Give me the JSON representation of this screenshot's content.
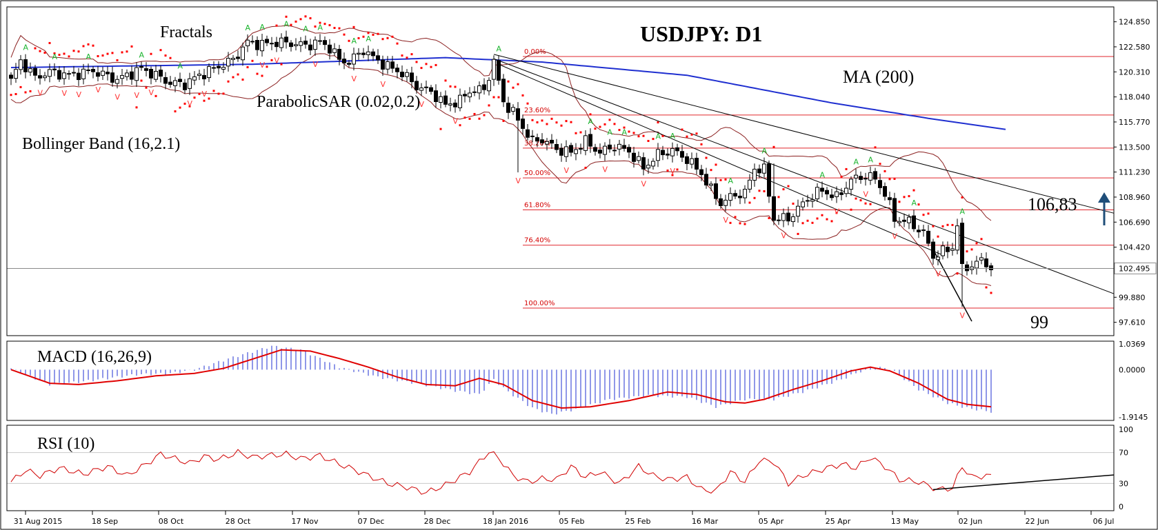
{
  "chart_data": [
    {
      "type": "candlestick",
      "title": "USDJPY: D1",
      "ylim": [
        96.4,
        126.2
      ],
      "y_ticks": [
        "124.850",
        "122.580",
        "120.310",
        "118.040",
        "115.770",
        "113.500",
        "111.230",
        "108.960",
        "106.690",
        "104.420",
        "102.495",
        "99.880",
        "97.610"
      ],
      "y_tick_values": [
        124.85,
        122.58,
        120.31,
        118.04,
        115.77,
        113.5,
        111.23,
        108.96,
        106.69,
        104.42,
        102.495,
        99.88,
        97.61
      ],
      "current_price_label": "102.495",
      "x_ticks": [
        "31 Aug 2015",
        "18 Sep",
        "08 Oct",
        "28 Oct",
        "17 Nov",
        "07 Dec",
        "28 Dec",
        "18 Jan 2016",
        "05 Feb",
        "25 Feb",
        "16 Mar",
        "05 Apr",
        "25 Apr",
        "13 May",
        "02 Jun",
        "22 Jun",
        "06 Jul"
      ],
      "annotations": {
        "fractals": "Fractals",
        "parabolic_sar": "ParabolicSAR (0.02,0.2)",
        "bollinger": "Bollinger Band (16,2.1)",
        "ma": "MA (200)",
        "level_high": "106,83",
        "level_low": "99"
      },
      "fibonacci": {
        "labels": [
          "0.00%",
          "23.60%",
          "38.20%",
          "50.00%",
          "61.80%",
          "76.40%",
          "100.00%"
        ],
        "values": [
          121.7,
          116.4,
          113.4,
          110.7,
          107.8,
          104.6,
          98.9
        ]
      },
      "close_anchors": [
        [
          0,
          119.5
        ],
        [
          2,
          121.3
        ],
        [
          5,
          119.8
        ],
        [
          8,
          120.3
        ],
        [
          12,
          120.0
        ],
        [
          17,
          120.4
        ],
        [
          22,
          119.6
        ],
        [
          27,
          120.6
        ],
        [
          30,
          120.0
        ],
        [
          33,
          119.3
        ],
        [
          36,
          119.2
        ],
        [
          39,
          120.0
        ],
        [
          42,
          120.6
        ],
        [
          46,
          121.4
        ],
        [
          49,
          123.0
        ],
        [
          52,
          122.8
        ],
        [
          55,
          123.0
        ],
        [
          58,
          122.9
        ],
        [
          61,
          122.7
        ],
        [
          64,
          123.0
        ],
        [
          66,
          122.5
        ],
        [
          68,
          121.4
        ],
        [
          70,
          121.2
        ],
        [
          73,
          122.3
        ],
        [
          75,
          121.6
        ],
        [
          78,
          120.8
        ],
        [
          81,
          120.2
        ],
        [
          84,
          119.0
        ],
        [
          87,
          118.5
        ],
        [
          90,
          117.3
        ],
        [
          93,
          117.7
        ],
        [
          95,
          118.6
        ],
        [
          98,
          118.7
        ],
        [
          100,
          121.2
        ],
        [
          102,
          117.6
        ],
        [
          104,
          116.6
        ],
        [
          106,
          115.3
        ],
        [
          108,
          114.0
        ],
        [
          110,
          114.2
        ],
        [
          113,
          113.3
        ],
        [
          116,
          113.0
        ],
        [
          119,
          114.0
        ],
        [
          122,
          113.0
        ],
        [
          125,
          113.6
        ],
        [
          128,
          113.1
        ],
        [
          131,
          111.6
        ],
        [
          134,
          112.8
        ],
        [
          137,
          113.2
        ],
        [
          140,
          112.4
        ],
        [
          143,
          111.1
        ],
        [
          145,
          109.6
        ],
        [
          147,
          108.4
        ],
        [
          150,
          109.2
        ],
        [
          152,
          109.3
        ],
        [
          154,
          111.6
        ],
        [
          156,
          111.4
        ],
        [
          158,
          107.0
        ],
        [
          161,
          107.0
        ],
        [
          163,
          107.9
        ],
        [
          165,
          108.8
        ],
        [
          168,
          109.6
        ],
        [
          171,
          108.9
        ],
        [
          174,
          110.5
        ],
        [
          177,
          110.9
        ],
        [
          179,
          110.6
        ],
        [
          181,
          109.3
        ],
        [
          183,
          107.0
        ],
        [
          186,
          106.7
        ],
        [
          189,
          105.7
        ],
        [
          191,
          103.6
        ],
        [
          193,
          104.0
        ],
        [
          195,
          104.4
        ],
        [
          196,
          106.5
        ],
        [
          197,
          102.4
        ],
        [
          199,
          102.8
        ],
        [
          201,
          103.2
        ],
        [
          203,
          102.6
        ]
      ],
      "ma200_anchors": [
        [
          0,
          120.7
        ],
        [
          50,
          121.0
        ],
        [
          90,
          121.6
        ],
        [
          110,
          121.2
        ],
        [
          140,
          120.0
        ],
        [
          170,
          117.5
        ],
        [
          190,
          116.1
        ],
        [
          206,
          115.1
        ]
      ],
      "macd": {
        "label": "MACD (16,26,9)",
        "ylim": [
          -2.05,
          1.15
        ],
        "y_ticks": [
          "1.0369",
          "0.0000",
          "-1.9145"
        ],
        "y_tick_values": [
          1.0369,
          0.0,
          -1.9145
        ],
        "histogram_anchors": [
          [
            0,
            0.05
          ],
          [
            8,
            -0.6
          ],
          [
            14,
            -0.5
          ],
          [
            26,
            -0.2
          ],
          [
            33,
            -0.15
          ],
          [
            38,
            0.0
          ],
          [
            46,
            0.5
          ],
          [
            54,
            0.95
          ],
          [
            60,
            0.8
          ],
          [
            68,
            0.1
          ],
          [
            76,
            -0.3
          ],
          [
            84,
            -0.55
          ],
          [
            92,
            -0.85
          ],
          [
            97,
            -1.0
          ],
          [
            100,
            -0.4
          ],
          [
            103,
            -0.9
          ],
          [
            108,
            -1.55
          ],
          [
            112,
            -1.8
          ],
          [
            117,
            -1.6
          ],
          [
            124,
            -1.2
          ],
          [
            132,
            -1.05
          ],
          [
            140,
            -1.1
          ],
          [
            146,
            -1.5
          ],
          [
            152,
            -1.2
          ],
          [
            158,
            -1.2
          ],
          [
            164,
            -0.9
          ],
          [
            172,
            -0.4
          ],
          [
            178,
            0.1
          ],
          [
            182,
            0.05
          ],
          [
            188,
            -0.8
          ],
          [
            194,
            -1.35
          ],
          [
            198,
            -1.55
          ],
          [
            203,
            -1.7
          ]
        ],
        "signal_anchors": [
          [
            0,
            0.0
          ],
          [
            8,
            -0.55
          ],
          [
            14,
            -0.6
          ],
          [
            22,
            -0.45
          ],
          [
            30,
            -0.25
          ],
          [
            38,
            -0.15
          ],
          [
            44,
            0.05
          ],
          [
            52,
            0.55
          ],
          [
            56,
            0.8
          ],
          [
            62,
            0.75
          ],
          [
            68,
            0.45
          ],
          [
            74,
            0.1
          ],
          [
            80,
            -0.3
          ],
          [
            86,
            -0.6
          ],
          [
            92,
            -0.65
          ],
          [
            97,
            -0.35
          ],
          [
            102,
            -0.6
          ],
          [
            108,
            -1.25
          ],
          [
            114,
            -1.55
          ],
          [
            120,
            -1.5
          ],
          [
            128,
            -1.25
          ],
          [
            136,
            -0.9
          ],
          [
            142,
            -1.0
          ],
          [
            148,
            -1.3
          ],
          [
            152,
            -1.35
          ],
          [
            156,
            -1.2
          ],
          [
            162,
            -0.8
          ],
          [
            168,
            -0.45
          ],
          [
            174,
            -0.05
          ],
          [
            178,
            0.1
          ],
          [
            182,
            -0.05
          ],
          [
            188,
            -0.55
          ],
          [
            194,
            -1.2
          ],
          [
            198,
            -1.4
          ],
          [
            203,
            -1.5
          ]
        ]
      },
      "rsi": {
        "label": "RSI (10)",
        "ylim": [
          0,
          100
        ],
        "y_ticks": [
          "100",
          "70",
          "30",
          "0"
        ],
        "y_tick_values": [
          100,
          70,
          30,
          0
        ],
        "value_anchors": [
          [
            0,
            32
          ],
          [
            3,
            47
          ],
          [
            6,
            40
          ],
          [
            10,
            50
          ],
          [
            15,
            42
          ],
          [
            20,
            52
          ],
          [
            24,
            40
          ],
          [
            28,
            55
          ],
          [
            31,
            68
          ],
          [
            34,
            62
          ],
          [
            37,
            56
          ],
          [
            40,
            65
          ],
          [
            43,
            61
          ],
          [
            47,
            70
          ],
          [
            50,
            64
          ],
          [
            53,
            66
          ],
          [
            57,
            68
          ],
          [
            60,
            62
          ],
          [
            64,
            66
          ],
          [
            68,
            55
          ],
          [
            71,
            48
          ],
          [
            74,
            40
          ],
          [
            78,
            30
          ],
          [
            82,
            25
          ],
          [
            86,
            18
          ],
          [
            90,
            28
          ],
          [
            95,
            45
          ],
          [
            99,
            71
          ],
          [
            101,
            63
          ],
          [
            104,
            40
          ],
          [
            107,
            32
          ],
          [
            110,
            36
          ],
          [
            113,
            35
          ],
          [
            116,
            52
          ],
          [
            119,
            38
          ],
          [
            122,
            45
          ],
          [
            126,
            30
          ],
          [
            130,
            52
          ],
          [
            133,
            40
          ],
          [
            136,
            35
          ],
          [
            140,
            38
          ],
          [
            143,
            22
          ],
          [
            146,
            20
          ],
          [
            149,
            45
          ],
          [
            152,
            32
          ],
          [
            155,
            60
          ],
          [
            158,
            58
          ],
          [
            161,
            30
          ],
          [
            164,
            40
          ],
          [
            168,
            48
          ],
          [
            172,
            55
          ],
          [
            175,
            50
          ],
          [
            178,
            64
          ],
          [
            181,
            52
          ],
          [
            184,
            35
          ],
          [
            188,
            32
          ],
          [
            192,
            22
          ],
          [
            195,
            24
          ],
          [
            197,
            52
          ],
          [
            199,
            38
          ],
          [
            202,
            40
          ],
          [
            204,
            38
          ]
        ]
      }
    }
  ]
}
